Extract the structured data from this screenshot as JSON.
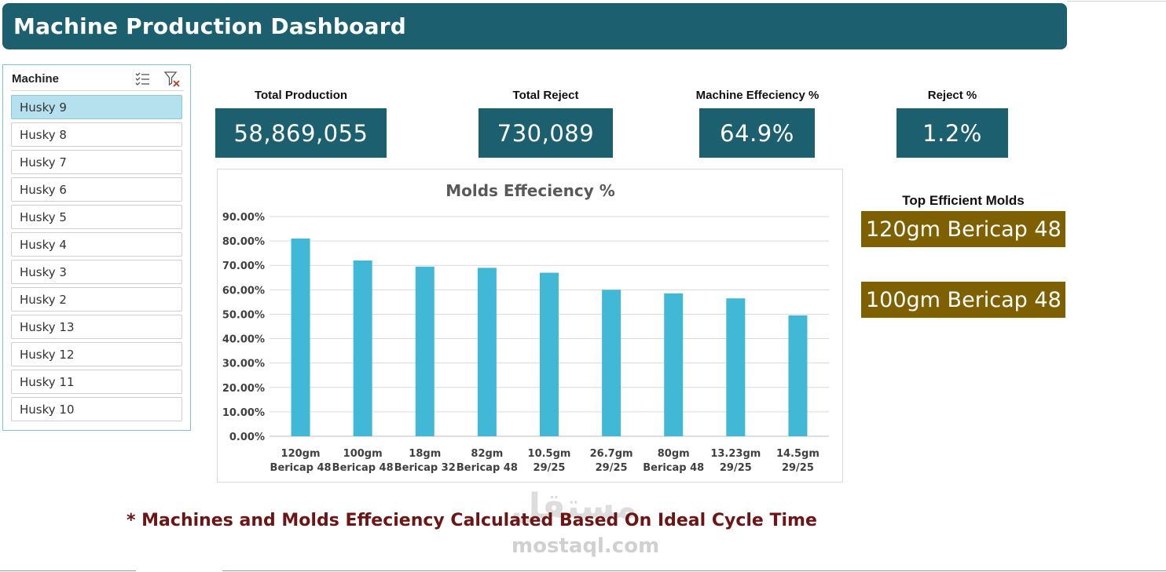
{
  "header": {
    "title": "Machine Production Dashboard"
  },
  "slicer": {
    "title": "Machine",
    "multi_select_icon": "multi-select-icon",
    "clear_filter_icon": "clear-filter-icon",
    "selected": "Husky 9",
    "items": [
      "Husky 9",
      "Husky 8",
      "Husky 7",
      "Husky 6",
      "Husky 5",
      "Husky 4",
      "Husky 3",
      "Husky 2",
      "Husky 13",
      "Husky 12",
      "Husky 11",
      "Husky 10"
    ]
  },
  "kpis": {
    "total_production": {
      "label": "Total Production",
      "value": "58,869,055"
    },
    "total_reject": {
      "label": "Total Reject",
      "value": "730,089"
    },
    "machine_efficiency": {
      "label": "Machine Effeciency %",
      "value": "64.9%"
    },
    "reject_pct": {
      "label": "Reject %",
      "value": "1.2%"
    }
  },
  "top_molds": {
    "title": "Top Efficient Molds",
    "items": [
      "120gm Bericap 48",
      "100gm Bericap 48"
    ]
  },
  "footnote": "* Machines and Molds Effeciency Calculated Based On Ideal Cycle Time",
  "watermark": {
    "arabic": "مستقل",
    "latin": "mostaql.com"
  },
  "colors": {
    "banner": "#1c6070",
    "kpi_box": "#1c6070",
    "bar": "#41b8d5",
    "mold_box": "#7f6000",
    "footnote": "#6b1515",
    "slicer_selected": "#b5e1ee"
  },
  "chart_data": {
    "type": "bar",
    "title": "Molds Effeciency %",
    "categories": [
      [
        "120gm",
        "Bericap 48"
      ],
      [
        "100gm",
        "Bericap 48"
      ],
      [
        "18gm",
        "Bericap 32"
      ],
      [
        "82gm",
        "Bericap 48"
      ],
      [
        "10.5gm",
        "29/25"
      ],
      [
        "26.7gm",
        "29/25"
      ],
      [
        "80gm",
        "Bericap 48"
      ],
      [
        "13.23gm",
        "29/25"
      ],
      [
        "14.5gm",
        "29/25"
      ]
    ],
    "values": [
      81.0,
      72.0,
      69.5,
      69.0,
      67.0,
      60.0,
      58.5,
      56.5,
      49.5
    ],
    "ylim": [
      0,
      90
    ],
    "yticks": [
      "0.00%",
      "10.00%",
      "20.00%",
      "30.00%",
      "40.00%",
      "50.00%",
      "60.00%",
      "70.00%",
      "80.00%",
      "90.00%"
    ],
    "xlabel": "",
    "ylabel": "",
    "grid": true,
    "legend": "none"
  }
}
